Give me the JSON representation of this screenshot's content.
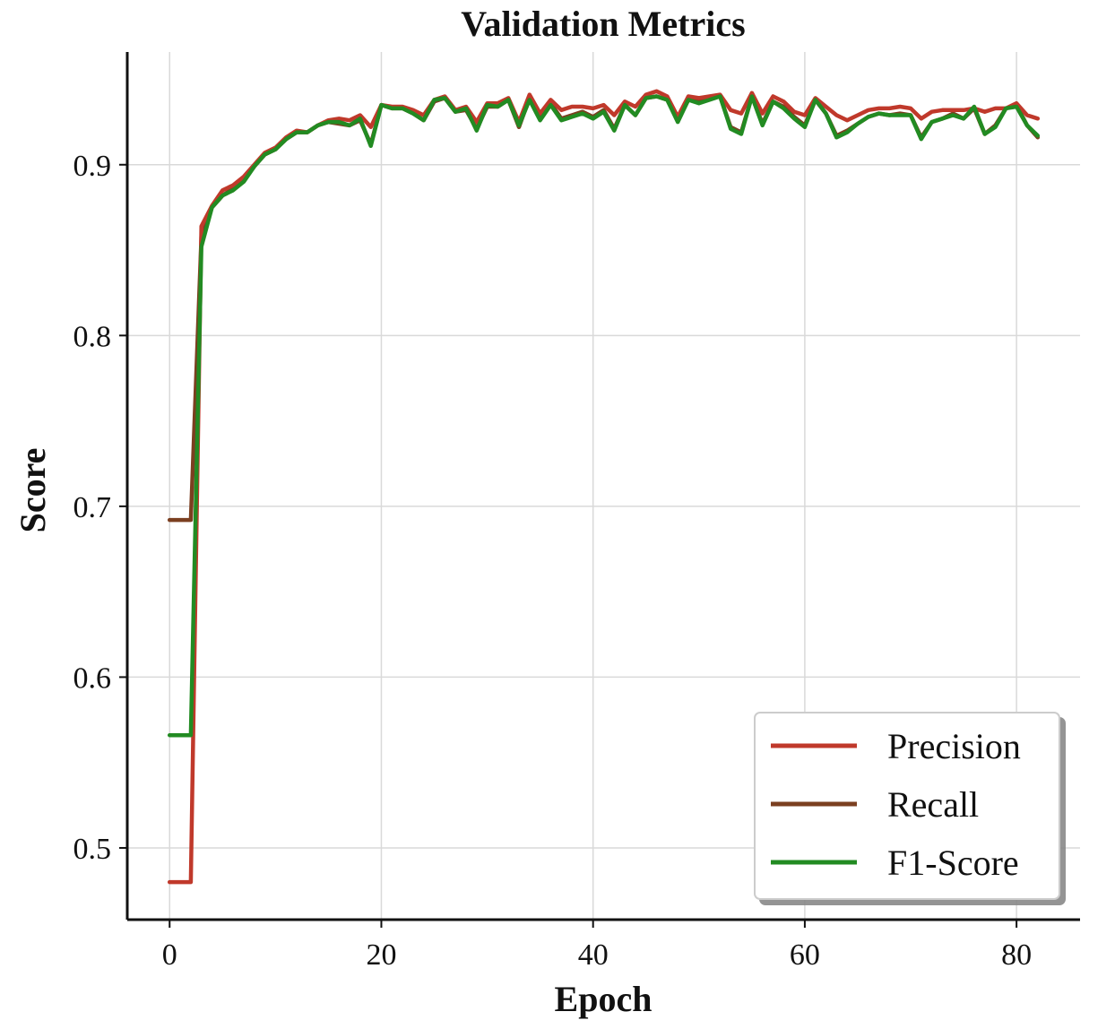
{
  "chart_data": {
    "type": "line",
    "title": "Validation Metrics",
    "xlabel": "Epoch",
    "ylabel": "Score",
    "xlim": [
      -4,
      86
    ],
    "ylim": [
      0.458,
      0.966
    ],
    "xticks": [
      0,
      20,
      40,
      60,
      80
    ],
    "xtick_labels": [
      "0",
      "20",
      "40",
      "60",
      "80"
    ],
    "yticks": [
      0.5,
      0.6,
      0.7,
      0.8,
      0.9
    ],
    "ytick_labels": [
      "0.5",
      "0.6",
      "0.7",
      "0.8",
      "0.9"
    ],
    "grid": true,
    "legend_position": "lower-right",
    "x": [
      0,
      1,
      2,
      3,
      4,
      5,
      6,
      7,
      8,
      9,
      10,
      11,
      12,
      13,
      14,
      15,
      16,
      17,
      18,
      19,
      20,
      21,
      22,
      23,
      24,
      25,
      26,
      27,
      28,
      29,
      30,
      31,
      32,
      33,
      34,
      35,
      36,
      37,
      38,
      39,
      40,
      41,
      42,
      43,
      44,
      45,
      46,
      47,
      48,
      49,
      50,
      51,
      52,
      53,
      54,
      55,
      56,
      57,
      58,
      59,
      60,
      61,
      62,
      63,
      64,
      65,
      66,
      67,
      68,
      69,
      70,
      71,
      72,
      73,
      74,
      75,
      76,
      77,
      78,
      79,
      80,
      81,
      82
    ],
    "series": [
      {
        "name": "Precision",
        "color": "#c0392b",
        "values": [
          0.48,
          0.48,
          0.48,
          0.864,
          0.876,
          0.885,
          0.888,
          0.893,
          0.9,
          0.907,
          0.91,
          0.916,
          0.92,
          0.919,
          0.923,
          0.926,
          0.927,
          0.926,
          0.929,
          0.922,
          0.935,
          0.934,
          0.934,
          0.932,
          0.929,
          0.938,
          0.94,
          0.932,
          0.934,
          0.925,
          0.936,
          0.936,
          0.939,
          0.925,
          0.941,
          0.93,
          0.938,
          0.932,
          0.934,
          0.934,
          0.933,
          0.935,
          0.929,
          0.937,
          0.934,
          0.941,
          0.943,
          0.94,
          0.928,
          0.94,
          0.939,
          0.94,
          0.941,
          0.932,
          0.93,
          0.942,
          0.93,
          0.94,
          0.937,
          0.931,
          0.929,
          0.939,
          0.934,
          0.929,
          0.926,
          0.929,
          0.932,
          0.933,
          0.933,
          0.934,
          0.933,
          0.927,
          0.931,
          0.932,
          0.932,
          0.932,
          0.933,
          0.931,
          0.933,
          0.933,
          0.936,
          0.929,
          0.927
        ]
      },
      {
        "name": "Recall",
        "color": "#7b3f20",
        "values": [
          0.692,
          0.692,
          0.692,
          0.858,
          0.875,
          0.882,
          0.886,
          0.891,
          0.899,
          0.906,
          0.909,
          0.915,
          0.919,
          0.919,
          0.923,
          0.925,
          0.924,
          0.923,
          0.926,
          0.912,
          0.935,
          0.933,
          0.933,
          0.93,
          0.926,
          0.937,
          0.939,
          0.931,
          0.932,
          0.921,
          0.934,
          0.934,
          0.938,
          0.922,
          0.939,
          0.927,
          0.936,
          0.927,
          0.929,
          0.931,
          0.928,
          0.932,
          0.921,
          0.935,
          0.929,
          0.939,
          0.94,
          0.938,
          0.926,
          0.938,
          0.937,
          0.939,
          0.94,
          0.922,
          0.919,
          0.94,
          0.924,
          0.937,
          0.934,
          0.928,
          0.923,
          0.938,
          0.93,
          0.917,
          0.92,
          0.924,
          0.928,
          0.93,
          0.929,
          0.93,
          0.929,
          0.916,
          0.925,
          0.927,
          0.93,
          0.927,
          0.933,
          0.918,
          0.923,
          0.933,
          0.935,
          0.923,
          0.916
        ]
      },
      {
        "name": "F1-Score",
        "color": "#228b22",
        "values": [
          0.566,
          0.566,
          0.566,
          0.852,
          0.875,
          0.882,
          0.885,
          0.89,
          0.899,
          0.906,
          0.909,
          0.915,
          0.919,
          0.919,
          0.923,
          0.925,
          0.925,
          0.923,
          0.927,
          0.911,
          0.935,
          0.933,
          0.933,
          0.93,
          0.926,
          0.938,
          0.939,
          0.931,
          0.933,
          0.92,
          0.935,
          0.934,
          0.938,
          0.923,
          0.938,
          0.926,
          0.935,
          0.926,
          0.928,
          0.93,
          0.927,
          0.931,
          0.92,
          0.935,
          0.929,
          0.939,
          0.94,
          0.938,
          0.925,
          0.938,
          0.936,
          0.938,
          0.94,
          0.921,
          0.918,
          0.94,
          0.923,
          0.937,
          0.933,
          0.927,
          0.922,
          0.938,
          0.93,
          0.916,
          0.919,
          0.924,
          0.928,
          0.93,
          0.929,
          0.929,
          0.929,
          0.915,
          0.925,
          0.927,
          0.929,
          0.927,
          0.934,
          0.918,
          0.922,
          0.933,
          0.934,
          0.923,
          0.917
        ]
      }
    ]
  }
}
